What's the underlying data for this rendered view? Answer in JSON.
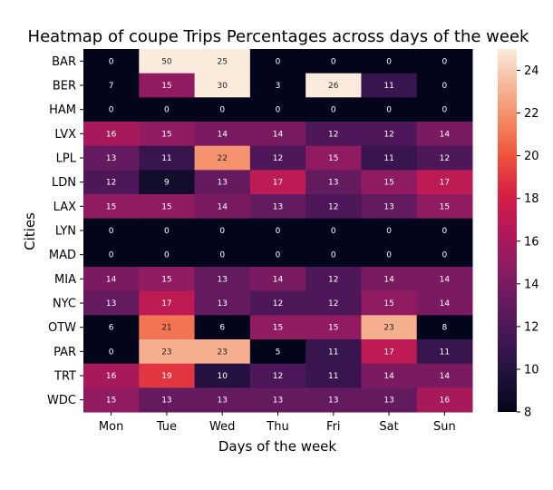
{
  "chart_data": {
    "type": "heatmap",
    "title": "Heatmap of coupe Trips Percentages across days of the week",
    "xlabel": "Days of the week",
    "ylabel": "Cities",
    "x_categories": [
      "Mon",
      "Tue",
      "Wed",
      "Thu",
      "Fri",
      "Sat",
      "Sun"
    ],
    "y_categories": [
      "BAR",
      "BER",
      "HAM",
      "LVX",
      "LPL",
      "LDN",
      "LAX",
      "LYN",
      "MAD",
      "MIA",
      "NYC",
      "OTW",
      "PAR",
      "TRT",
      "WDC"
    ],
    "values": [
      [
        0,
        50,
        25,
        0,
        0,
        0,
        0
      ],
      [
        7,
        15,
        30,
        3,
        26,
        11,
        0
      ],
      [
        0,
        0,
        0,
        0,
        0,
        0,
        0
      ],
      [
        16,
        15,
        14,
        14,
        12,
        12,
        14
      ],
      [
        13,
        11,
        22,
        12,
        15,
        11,
        12
      ],
      [
        12,
        9,
        13,
        17,
        13,
        15,
        17
      ],
      [
        15,
        15,
        14,
        13,
        12,
        13,
        15
      ],
      [
        0,
        0,
        0,
        0,
        0,
        0,
        0
      ],
      [
        0,
        0,
        0,
        0,
        0,
        0,
        0
      ],
      [
        14,
        15,
        13,
        14,
        12,
        14,
        14
      ],
      [
        13,
        17,
        13,
        12,
        12,
        15,
        14
      ],
      [
        6,
        21,
        6,
        15,
        15,
        23,
        8
      ],
      [
        0,
        23,
        23,
        5,
        11,
        17,
        11
      ],
      [
        16,
        19,
        10,
        12,
        11,
        14,
        14
      ],
      [
        15,
        13,
        13,
        13,
        13,
        13,
        16
      ]
    ],
    "colorbar": {
      "range": [
        8,
        25
      ],
      "ticks": [
        8,
        10,
        12,
        14,
        16,
        18,
        20,
        22,
        24
      ],
      "colormap": "rocket"
    },
    "grid": false,
    "legend": "colorbar-right"
  }
}
